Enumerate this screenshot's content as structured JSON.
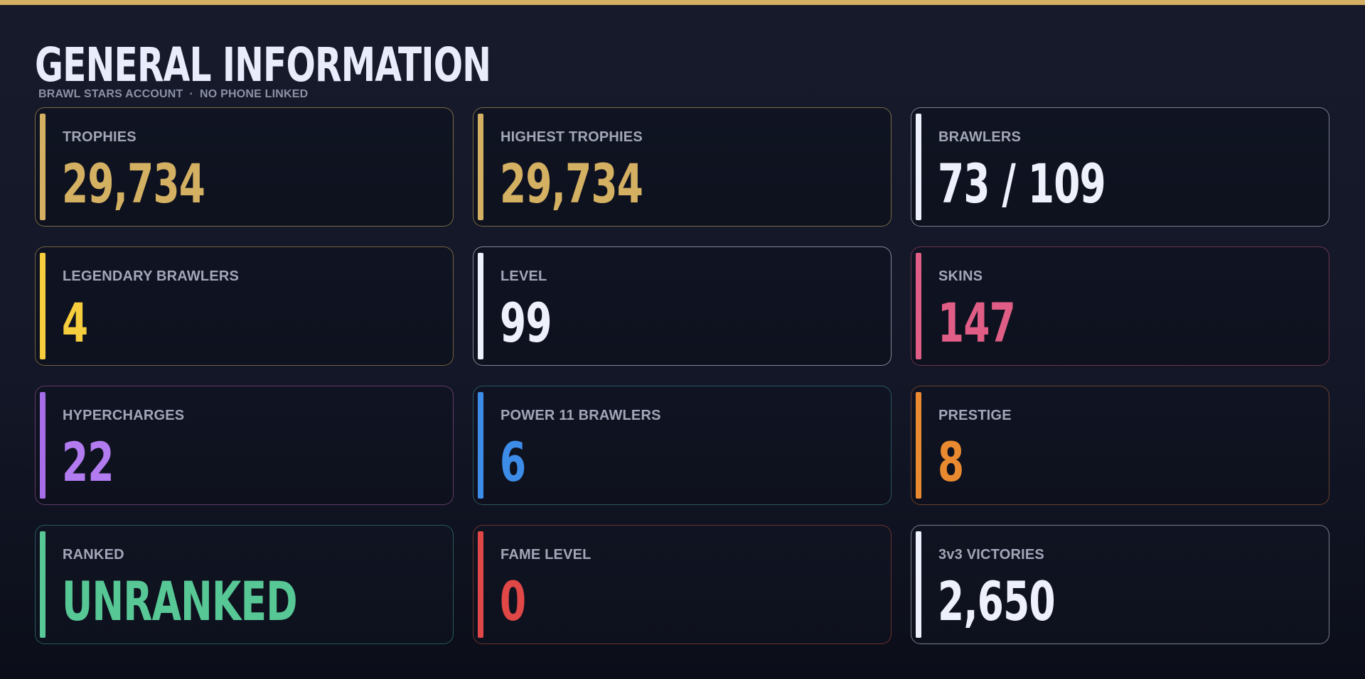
{
  "header": {
    "title": "GENERAL INFORMATION",
    "subtitle_account": "BRAWL STARS ACCOUNT",
    "subtitle_separator": "·",
    "subtitle_phone": "NO PHONE LINKED"
  },
  "colors": {
    "top_bar": "#d4b062",
    "gold": "#d4b062",
    "white": "#eef0fb",
    "yellow": "#f6cd3c",
    "pink": "#e05e86",
    "purple": "#a66de8",
    "blue": "#3d8de8",
    "orange": "#ea8a30",
    "green": "#57c795",
    "red": "#e04747"
  },
  "stats": [
    {
      "label": "TROPHIES",
      "value": "29,734"
    },
    {
      "label": "HIGHEST TROPHIES",
      "value": "29,734"
    },
    {
      "label": "BRAWLERS",
      "value": "73 / 109"
    },
    {
      "label": "LEGENDARY BRAWLERS",
      "value": "4"
    },
    {
      "label": "LEVEL",
      "value": "99"
    },
    {
      "label": "SKINS",
      "value": "147"
    },
    {
      "label": "HYPERCHARGES",
      "value": "22"
    },
    {
      "label": "POWER 11 BRAWLERS",
      "value": "6"
    },
    {
      "label": "PRESTIGE",
      "value": "8"
    },
    {
      "label": "RANKED",
      "value": "UNRANKED"
    },
    {
      "label": "FAME LEVEL",
      "value": "0"
    },
    {
      "label": "3v3 VICTORIES",
      "value": "2,650"
    }
  ]
}
